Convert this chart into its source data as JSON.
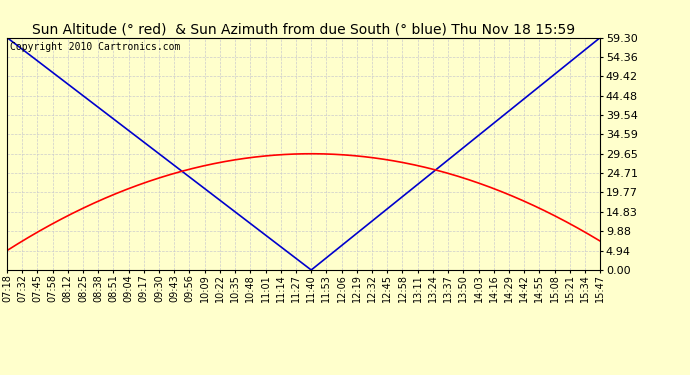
{
  "title": "Sun Altitude (° red)  & Sun Azimuth from due South (° blue) Thu Nov 18 15:59",
  "copyright": "Copyright 2010 Cartronics.com",
  "yticks": [
    0.0,
    4.94,
    9.88,
    14.83,
    19.77,
    24.71,
    29.65,
    34.59,
    39.54,
    44.48,
    49.42,
    54.36,
    59.3
  ],
  "ymax": 59.3,
  "ymin": 0.0,
  "xtick_labels": [
    "07:18",
    "07:32",
    "07:45",
    "07:58",
    "08:12",
    "08:25",
    "08:38",
    "08:51",
    "09:04",
    "09:17",
    "09:30",
    "09:43",
    "09:56",
    "10:09",
    "10:22",
    "10:35",
    "10:48",
    "11:01",
    "11:14",
    "11:27",
    "11:40",
    "11:53",
    "12:06",
    "12:19",
    "12:32",
    "12:45",
    "12:58",
    "13:11",
    "13:24",
    "13:37",
    "13:50",
    "14:03",
    "14:16",
    "14:29",
    "14:42",
    "14:55",
    "15:08",
    "15:21",
    "15:34",
    "15:47"
  ],
  "bg_color": "#FFFFCC",
  "grid_color": "#CCCCCC",
  "blue_line_color": "#0000CC",
  "red_line_color": "#FF0000",
  "title_fontsize": 10,
  "copyright_fontsize": 7,
  "tick_fontsize": 7,
  "ytick_fontsize": 8
}
